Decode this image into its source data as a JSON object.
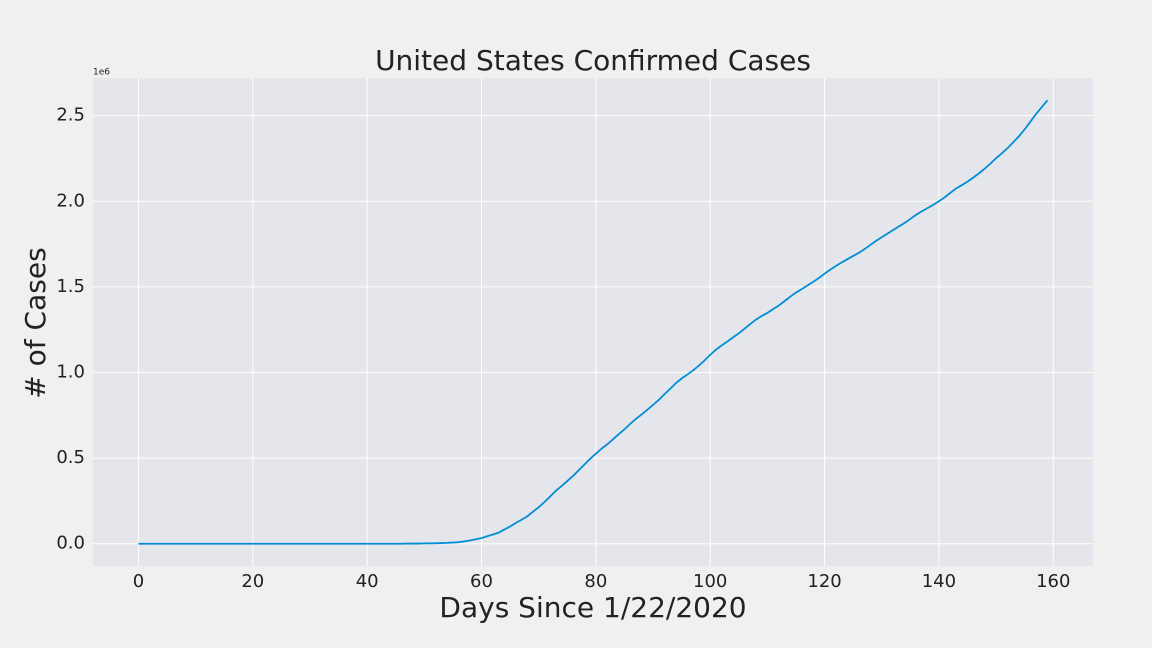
{
  "chart_data": {
    "type": "line",
    "title": "United States Confirmed Cases",
    "x_label": "Days Since 1/22/2020",
    "y_label": "# of Cases",
    "y_offset_label": "1e6",
    "color": "#008fd5",
    "grid": true,
    "xlim": [
      -7.95,
      166.95
    ],
    "ylim": [
      -0.13,
      2.72
    ],
    "xticks": [
      0,
      20,
      40,
      60,
      80,
      100,
      120,
      140,
      160
    ],
    "yticks": [
      {
        "value": 0,
        "label": "0.0"
      },
      0.5,
      {
        "value": 1,
        "label": "1.0"
      },
      1.5,
      {
        "value": 2,
        "label": "2.0"
      },
      2.5
    ],
    "x": [
      0,
      1,
      2,
      3,
      4,
      5,
      6,
      7,
      8,
      9,
      10,
      11,
      12,
      13,
      14,
      15,
      16,
      17,
      18,
      19,
      20,
      21,
      22,
      23,
      24,
      25,
      26,
      27,
      28,
      29,
      30,
      31,
      32,
      33,
      34,
      35,
      36,
      37,
      38,
      39,
      40,
      41,
      42,
      43,
      44,
      45,
      46,
      47,
      48,
      49,
      50,
      51,
      52,
      53,
      54,
      55,
      56,
      57,
      58,
      59,
      60,
      61,
      62,
      63,
      64,
      65,
      66,
      67,
      68,
      69,
      70,
      71,
      72,
      73,
      74,
      75,
      76,
      77,
      78,
      79,
      80,
      81,
      82,
      83,
      84,
      85,
      86,
      87,
      88,
      89,
      90,
      91,
      92,
      93,
      94,
      95,
      96,
      97,
      98,
      99,
      100,
      101,
      102,
      103,
      104,
      105,
      106,
      107,
      108,
      109,
      110,
      111,
      112,
      113,
      114,
      115,
      116,
      117,
      118,
      119,
      120,
      121,
      122,
      123,
      124,
      125,
      126,
      127,
      128,
      129,
      130,
      131,
      132,
      133,
      134,
      135,
      136,
      137,
      138,
      139,
      140,
      141,
      142,
      143,
      144,
      145,
      146,
      147,
      148,
      149,
      150,
      151,
      152,
      153,
      154,
      155,
      156,
      157,
      158,
      159
    ],
    "values": [
      0,
      0,
      0,
      0,
      0,
      0,
      0,
      0,
      0,
      0,
      0,
      0,
      0,
      0,
      0,
      0,
      0,
      0,
      0,
      0,
      0,
      0,
      0,
      0,
      0,
      0,
      0,
      0,
      0,
      0,
      0,
      0,
      0,
      0,
      0,
      0,
      0,
      0,
      0,
      0,
      0,
      0,
      0,
      0,
      0,
      0,
      0,
      0.001,
      0.001,
      0.001,
      0.002,
      0.002,
      0.003,
      0.004,
      0.005,
      0.007,
      0.009,
      0.014,
      0.019,
      0.026,
      0.033,
      0.044,
      0.054,
      0.065,
      0.083,
      0.101,
      0.121,
      0.14,
      0.16,
      0.187,
      0.213,
      0.243,
      0.276,
      0.309,
      0.337,
      0.366,
      0.396,
      0.429,
      0.463,
      0.496,
      0.526,
      0.555,
      0.581,
      0.61,
      0.64,
      0.668,
      0.7,
      0.729,
      0.755,
      0.782,
      0.811,
      0.84,
      0.873,
      0.905,
      0.938,
      0.965,
      0.988,
      1.012,
      1.04,
      1.07,
      1.103,
      1.133,
      1.158,
      1.181,
      1.205,
      1.229,
      1.256,
      1.283,
      1.309,
      1.33,
      1.348,
      1.37,
      1.391,
      1.417,
      1.443,
      1.467,
      1.487,
      1.508,
      1.529,
      1.552,
      1.577,
      1.601,
      1.623,
      1.643,
      1.662,
      1.681,
      1.699,
      1.721,
      1.745,
      1.769,
      1.79,
      1.811,
      1.832,
      1.853,
      1.873,
      1.897,
      1.921,
      1.941,
      1.96,
      1.979,
      2.0,
      2.023,
      2.049,
      2.075,
      2.094,
      2.115,
      2.138,
      2.163,
      2.19,
      2.22,
      2.252,
      2.28,
      2.31,
      2.345,
      2.38,
      2.42,
      2.465,
      2.51,
      2.55,
      2.59
    ]
  }
}
